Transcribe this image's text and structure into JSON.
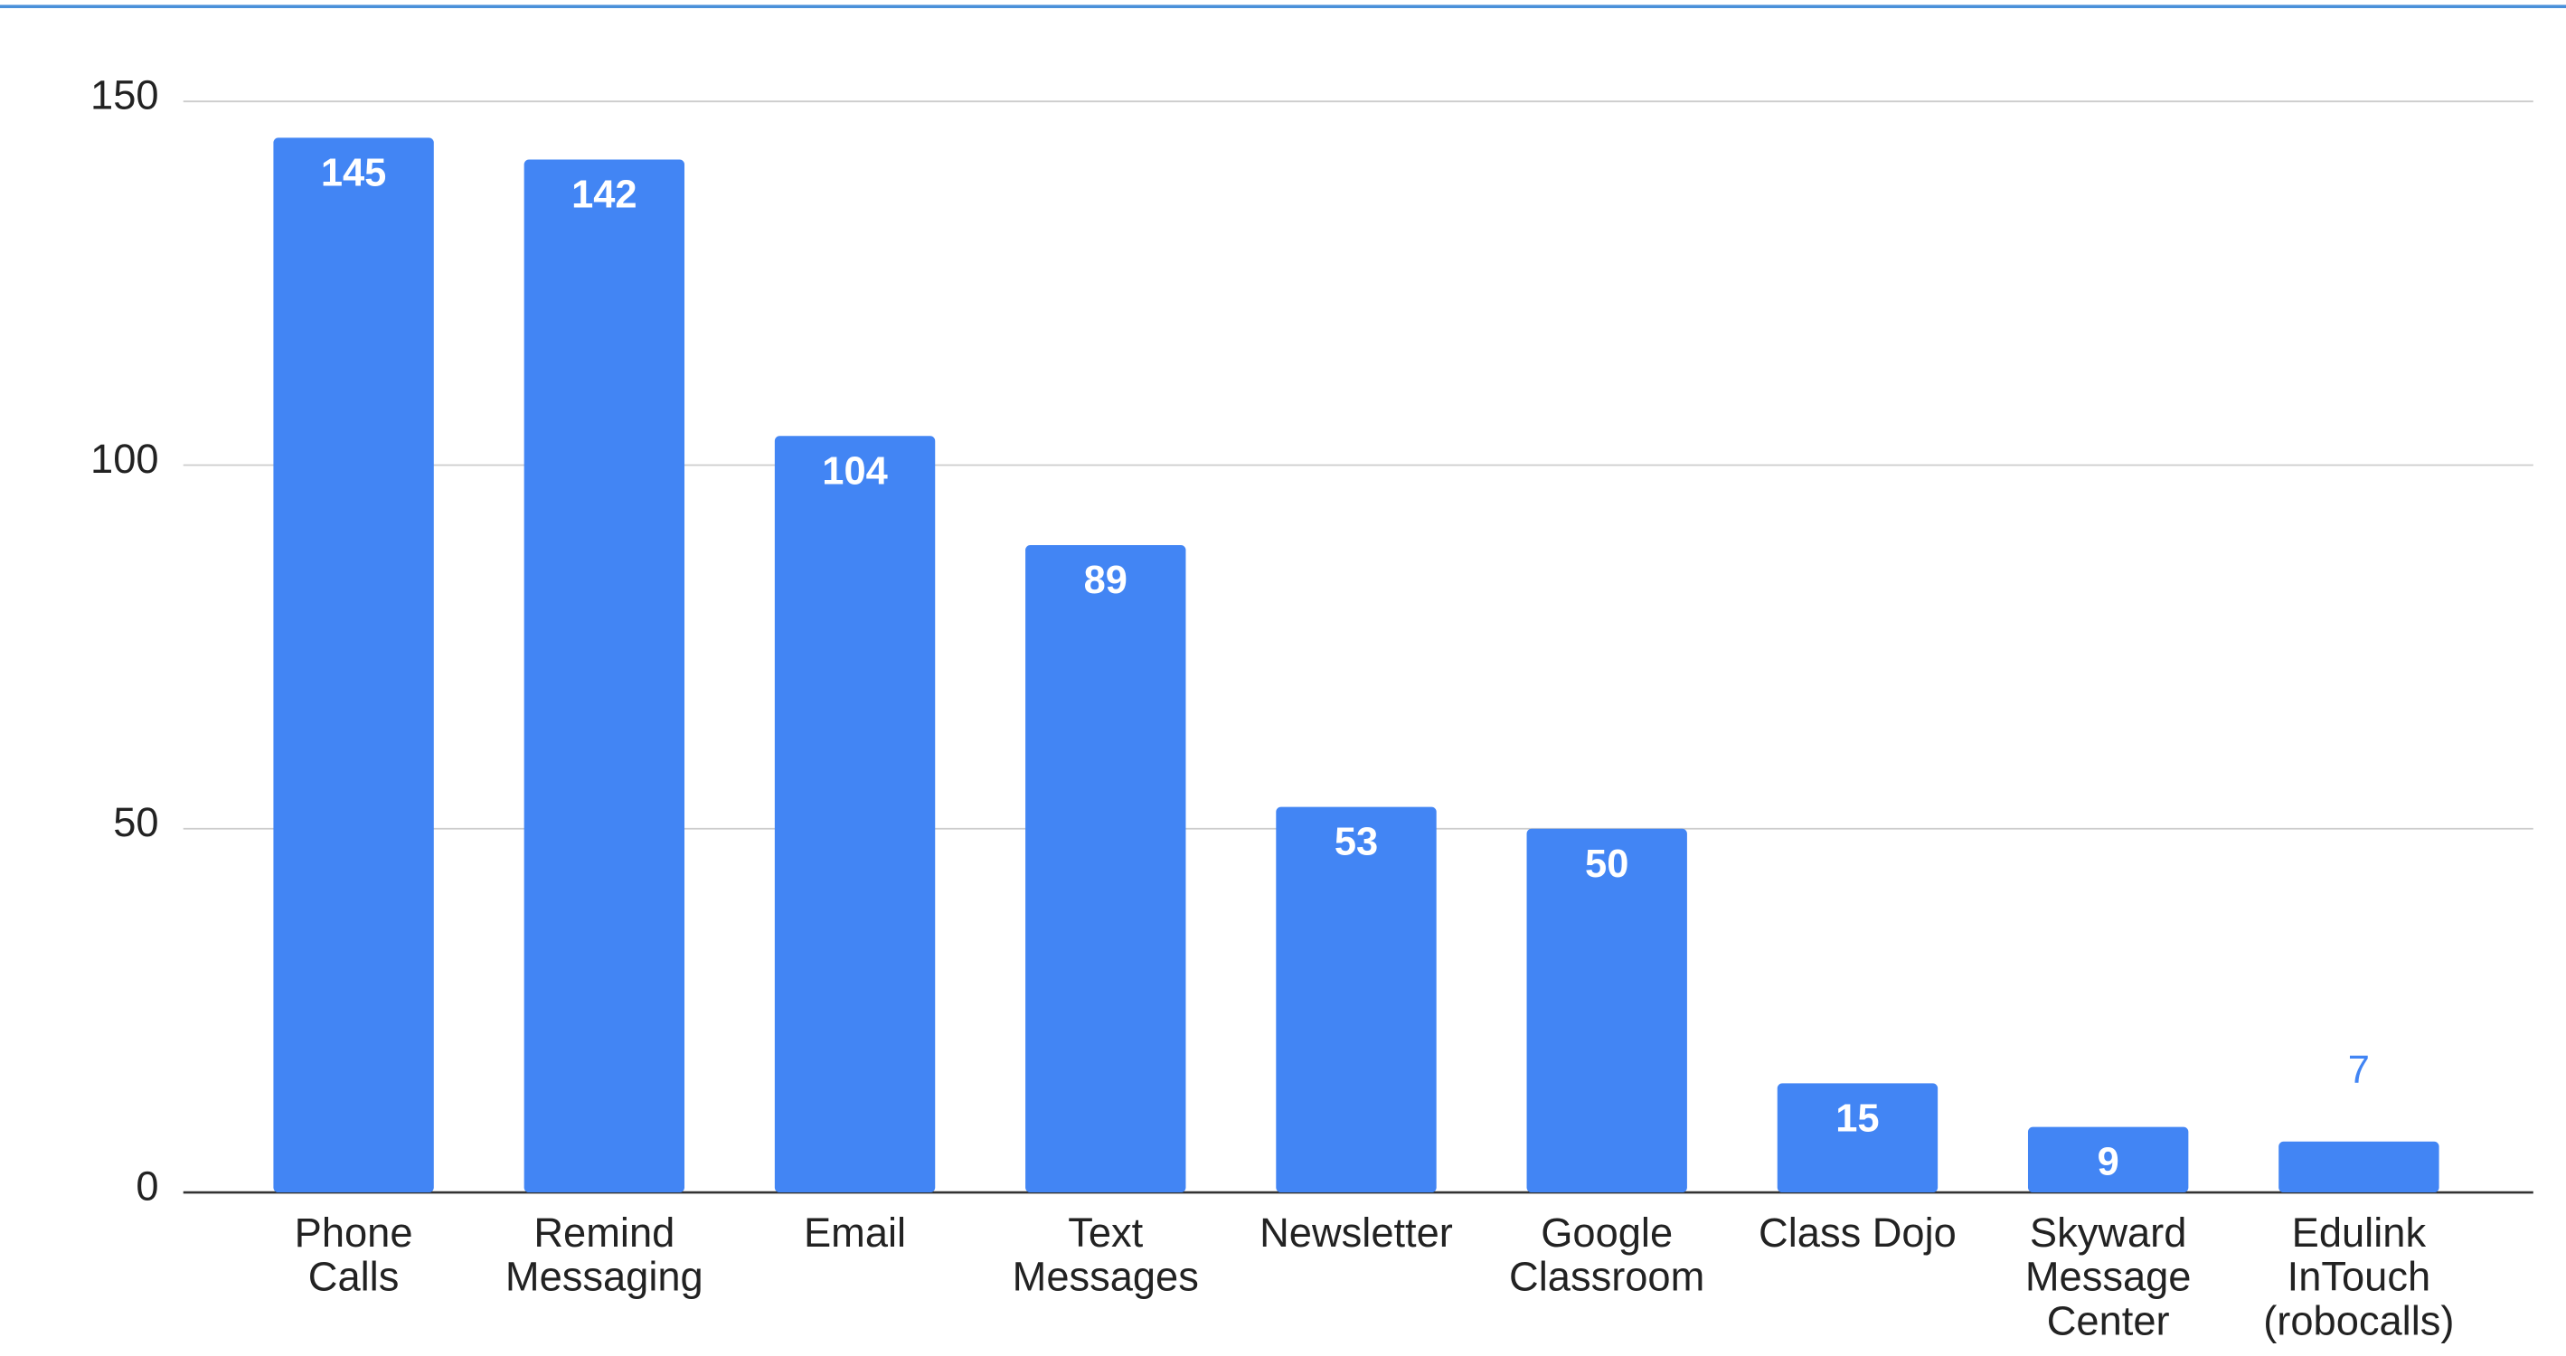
{
  "chart_data": {
    "type": "bar",
    "categories": [
      "Phone Calls",
      "Remind Messaging",
      "Email",
      "Text Messages",
      "Newsletter",
      "Google Classroom",
      "Class Dojo",
      "Skyward Message Center",
      "Edulink InTouch (robocalls)"
    ],
    "values": [
      145,
      142,
      104,
      89,
      53,
      50,
      15,
      9,
      7
    ],
    "color": "#4285f4",
    "ylim": [
      0,
      150
    ],
    "yticks": [
      0,
      50,
      100,
      150
    ],
    "grid": true
  }
}
